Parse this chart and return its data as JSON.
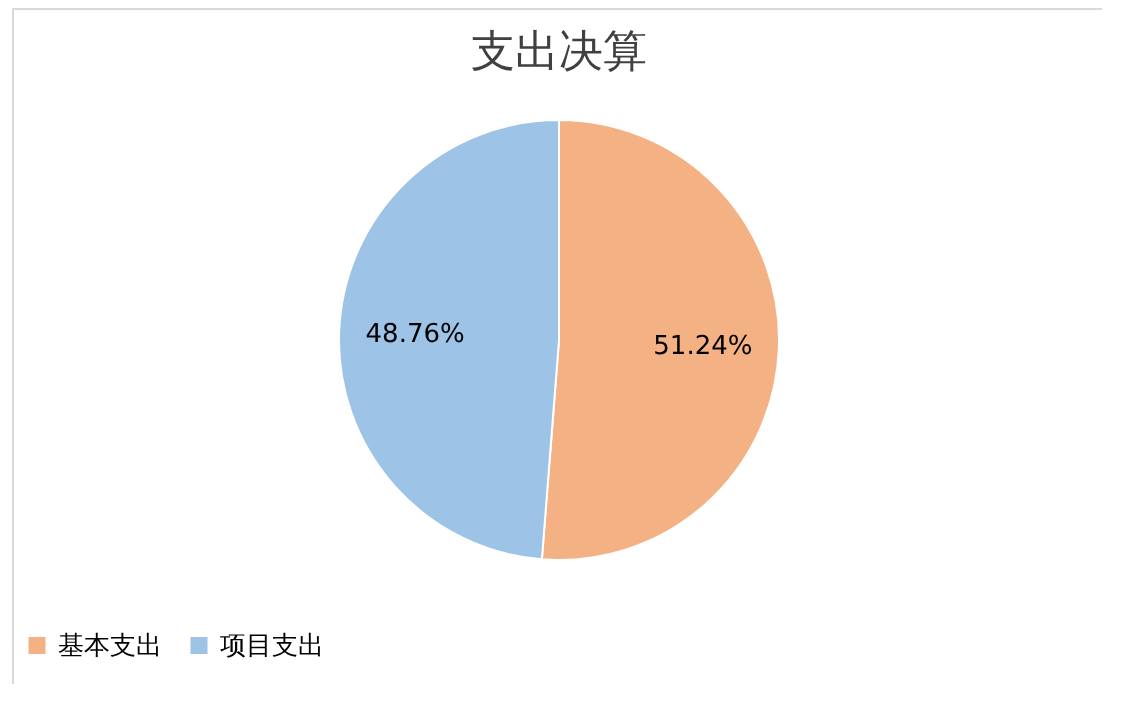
{
  "chart_data": {
    "type": "pie",
    "title": "支出决算",
    "categories": [
      "基本支出",
      "项目支出"
    ],
    "values": [
      51.24,
      48.76
    ],
    "colors": [
      "#f4b183",
      "#9dc3e6"
    ],
    "value_labels": [
      "51.24%",
      "48.76%"
    ],
    "legend": "bottom"
  }
}
